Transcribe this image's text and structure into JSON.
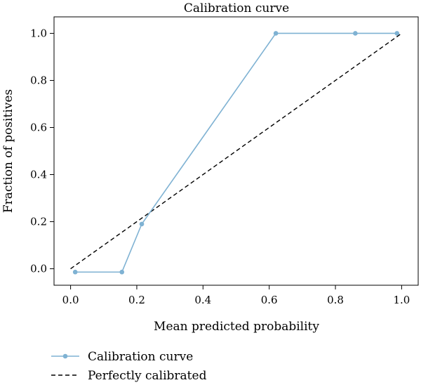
{
  "chart_data": {
    "type": "line",
    "title": "Calibration curve",
    "xlabel": "Mean predicted probability",
    "ylabel": "Fraction of positives",
    "xlim": [
      -0.05,
      1.05
    ],
    "ylim": [
      -0.07,
      1.07
    ],
    "xticks": [
      0.0,
      0.2,
      0.4,
      0.6,
      0.8,
      1.0
    ],
    "xtick_labels": [
      "0.0",
      "0.2",
      "0.4",
      "0.6",
      "0.8",
      "1.0"
    ],
    "yticks": [
      0.0,
      0.2,
      0.4,
      0.6,
      0.8,
      1.0
    ],
    "ytick_labels": [
      "0.0",
      "0.2",
      "0.4",
      "0.6",
      "0.8",
      "1.0"
    ],
    "grid": false,
    "legend_position": "below",
    "series": [
      {
        "name": "Calibration curve",
        "style": "solid-with-markers",
        "color": "#7fb2d3",
        "x": [
          0.014,
          0.155,
          0.215,
          0.62,
          0.86,
          0.986
        ],
        "y": [
          -0.014,
          -0.014,
          0.19,
          1.0,
          1.0,
          1.0
        ]
      },
      {
        "name": "Perfectly calibrated",
        "style": "dashed",
        "color": "#000000",
        "x": [
          0.0,
          1.0
        ],
        "y": [
          0.0,
          1.0
        ]
      }
    ]
  }
}
